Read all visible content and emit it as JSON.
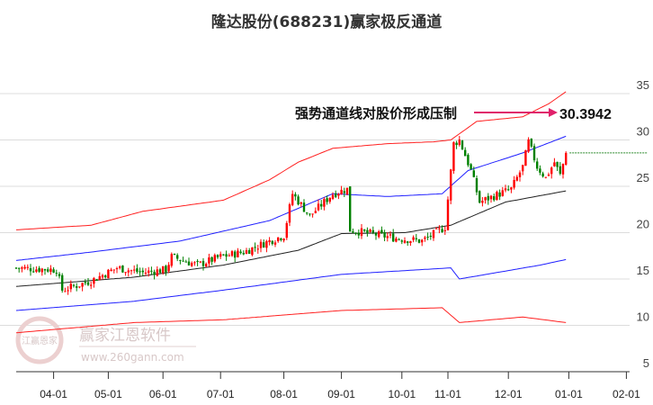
{
  "chart_data": {
    "type": "candlestick",
    "title": "隆达股份(688231)赢家极反通道",
    "ylim": [
      5,
      35
    ],
    "yticks": [
      5,
      10,
      15,
      20,
      25,
      30,
      35
    ],
    "xticks": [
      {
        "label": "04-01",
        "day": 13
      },
      {
        "label": "05-01",
        "day": 32
      },
      {
        "label": "06-01",
        "day": 51
      },
      {
        "label": "07-01",
        "day": 71
      },
      {
        "label": "08-01",
        "day": 93
      },
      {
        "label": "09-01",
        "day": 113
      },
      {
        "label": "10-01",
        "day": 134
      },
      {
        "label": "11-01",
        "day": 150
      },
      {
        "label": "12-01",
        "day": 171
      },
      {
        "label": "01-01",
        "day": 192
      },
      {
        "label": "02-01",
        "day": 212
      }
    ],
    "xlim_days": [
      0,
      216
    ],
    "close_keypoints": [
      [
        0,
        16.2
      ],
      [
        14,
        16.0
      ],
      [
        16,
        13.8
      ],
      [
        26,
        14.8
      ],
      [
        35,
        16.2
      ],
      [
        44,
        15.7
      ],
      [
        52,
        16.0
      ],
      [
        54,
        17.4
      ],
      [
        63,
        16.5
      ],
      [
        71,
        17.4
      ],
      [
        79,
        17.9
      ],
      [
        88,
        19.1
      ],
      [
        93,
        19.7
      ],
      [
        96,
        24.2
      ],
      [
        102,
        21.8
      ],
      [
        110,
        24.2
      ],
      [
        115,
        24.7
      ],
      [
        116,
        20.3
      ],
      [
        123,
        19.9
      ],
      [
        132,
        19.4
      ],
      [
        141,
        19.1
      ],
      [
        149,
        20.6
      ],
      [
        152,
        29.6
      ],
      [
        154,
        30.0
      ],
      [
        158,
        26.7
      ],
      [
        161,
        23.3
      ],
      [
        168,
        24.2
      ],
      [
        172,
        24.7
      ],
      [
        176,
        27.1
      ],
      [
        178,
        29.8
      ],
      [
        181,
        27.1
      ],
      [
        184,
        25.9
      ],
      [
        187,
        27.6
      ],
      [
        189,
        26.2
      ],
      [
        191,
        28.6
      ]
    ],
    "series": [
      {
        "name": "upper-outer",
        "color": "#ff2020",
        "points": [
          [
            0,
            20.3
          ],
          [
            26,
            20.8
          ],
          [
            44,
            22.3
          ],
          [
            72,
            23.5
          ],
          [
            88,
            25.7
          ],
          [
            98,
            27.6
          ],
          [
            110,
            29.1
          ],
          [
            129,
            29.6
          ],
          [
            145,
            29.8
          ],
          [
            151,
            30.0
          ],
          [
            160,
            32.0
          ],
          [
            176,
            32.5
          ],
          [
            185,
            33.9
          ],
          [
            191,
            35.2
          ]
        ]
      },
      {
        "name": "upper-inner",
        "color": "#2020ff",
        "points": [
          [
            0,
            17.0
          ],
          [
            26,
            17.9
          ],
          [
            57,
            19.1
          ],
          [
            88,
            21.3
          ],
          [
            110,
            24.2
          ],
          [
            129,
            23.9
          ],
          [
            148,
            24.2
          ],
          [
            157,
            26.7
          ],
          [
            176,
            28.6
          ],
          [
            191,
            30.4
          ]
        ]
      },
      {
        "name": "middle",
        "color": "#222222",
        "points": [
          [
            0,
            14.2
          ],
          [
            41,
            15.2
          ],
          [
            72,
            16.5
          ],
          [
            98,
            18.1
          ],
          [
            113,
            19.9
          ],
          [
            135,
            20.0
          ],
          [
            151,
            20.8
          ],
          [
            170,
            23.3
          ],
          [
            191,
            24.5
          ]
        ]
      },
      {
        "name": "lower-inner",
        "color": "#2020ff",
        "points": [
          [
            0,
            11.6
          ],
          [
            41,
            12.6
          ],
          [
            72,
            13.8
          ],
          [
            113,
            15.5
          ],
          [
            151,
            16.2
          ],
          [
            154,
            15.0
          ],
          [
            182,
            16.5
          ],
          [
            191,
            17.1
          ]
        ]
      },
      {
        "name": "lower-outer",
        "color": "#ff2020",
        "points": [
          [
            0,
            9.2
          ],
          [
            41,
            10.3
          ],
          [
            72,
            10.6
          ],
          [
            113,
            11.6
          ],
          [
            148,
            11.9
          ],
          [
            154,
            10.3
          ],
          [
            176,
            10.9
          ],
          [
            191,
            10.3
          ]
        ]
      }
    ],
    "last_price_line": 28.6,
    "annotation": {
      "text": "强势通道线对股价形成压制",
      "value": "30.3942",
      "target": 30.4
    }
  },
  "watermark": {
    "brand": "赢家江恩软件",
    "url": "www.260gann.com",
    "seal": "江赢恩家"
  },
  "colors": {
    "up": "#ff0000",
    "down": "#008000",
    "arrow": "#e0206a",
    "grid": "#dddddd"
  }
}
